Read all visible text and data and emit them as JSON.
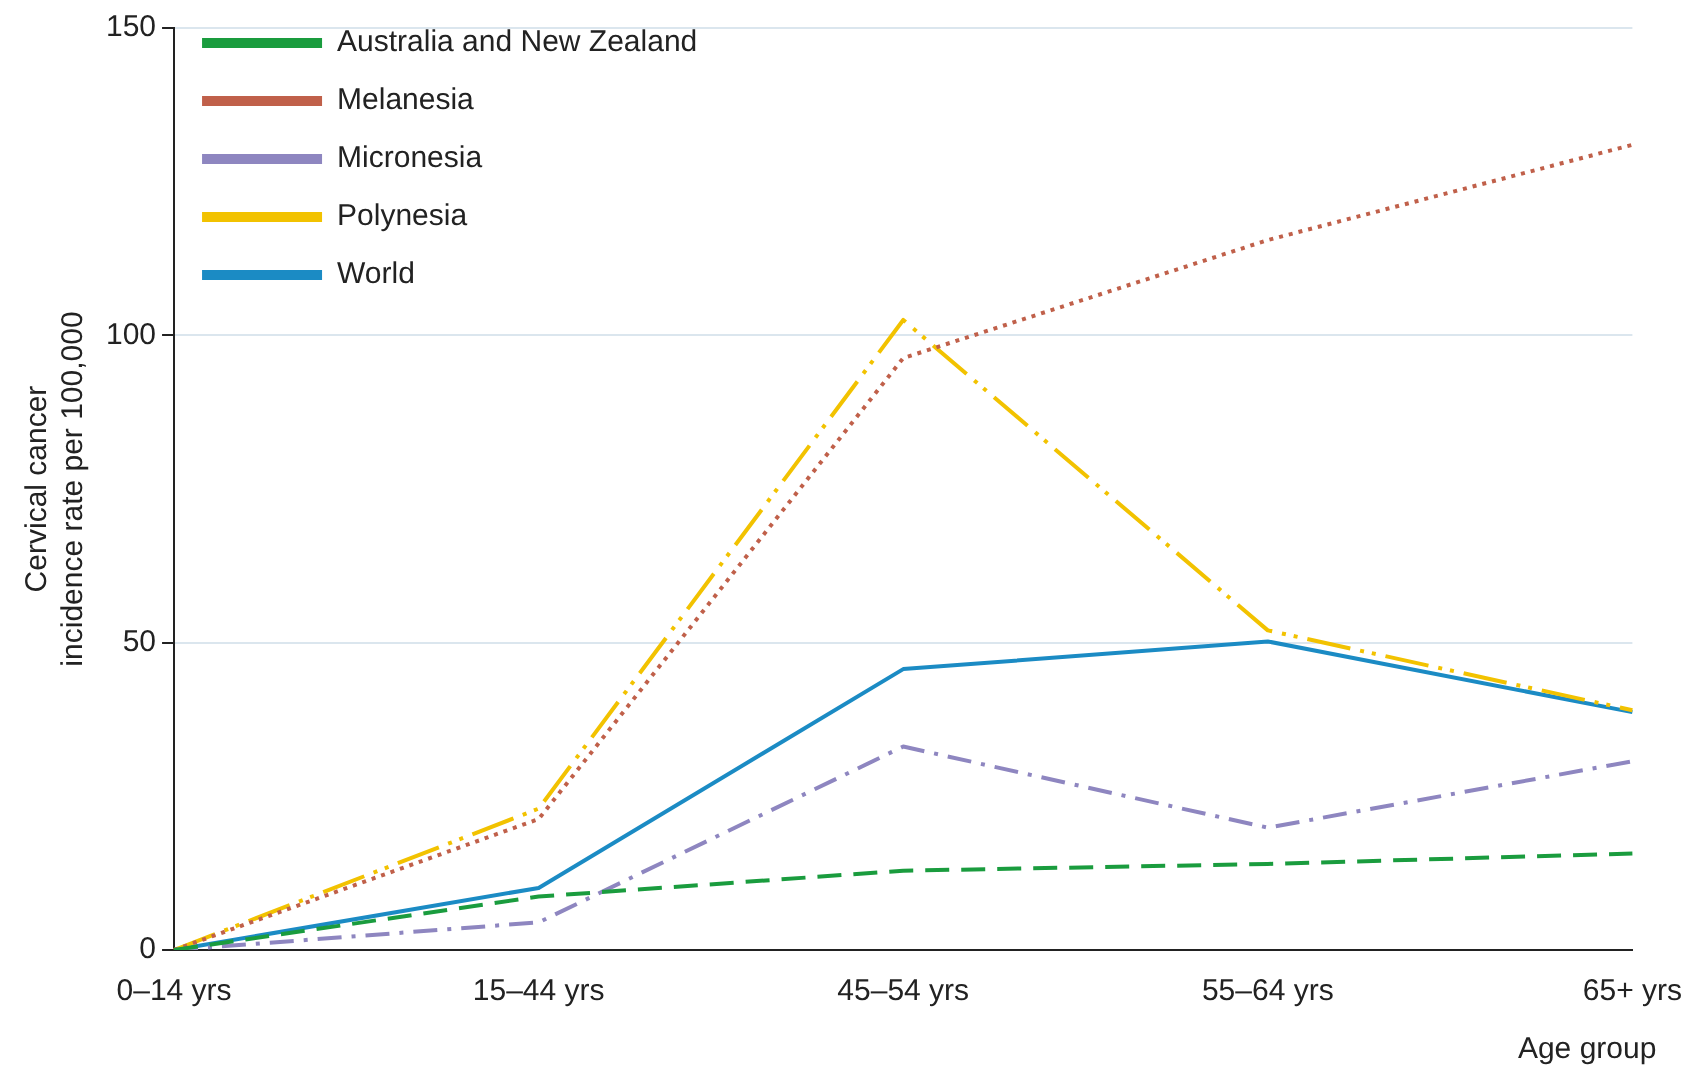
{
  "chart_data": {
    "type": "line",
    "xlabel": "Age group",
    "ylabel": "Cervical cancer\nincidence rate per 100,000",
    "categories": [
      "0–14 yrs",
      "15–44 yrs",
      "45–54 yrs",
      "55–64 yrs",
      "65+ yrs"
    ],
    "series": [
      {
        "name": "Australia and New Zealand",
        "color": "#1a9c3e",
        "line_style": "dashed",
        "values": [
          0,
          8.7,
          12.9,
          14,
          15.7
        ]
      },
      {
        "name": "Melanesia",
        "color": "#c0604a",
        "line_style": "dotted",
        "values": [
          0,
          21.3,
          96.3,
          115.5,
          131
        ]
      },
      {
        "name": "Micronesia",
        "color": "#8e86c0",
        "line_style": "dashdot",
        "values": [
          0,
          4.5,
          33.1,
          19.9,
          30.7
        ]
      },
      {
        "name": "Polynesia",
        "color": "#f2c200",
        "line_style": "longdashdotdot",
        "values": [
          0,
          23,
          102.5,
          52,
          39
        ]
      },
      {
        "name": "World",
        "color": "#1b8bc4",
        "line_style": "solid",
        "values": [
          0,
          10.1,
          45.7,
          50.2,
          38.7
        ]
      }
    ],
    "ylim": [
      0,
      150
    ],
    "yticks": [
      0,
      50,
      100,
      150
    ],
    "grid": "y",
    "legend": "top left",
    "marker": "none"
  }
}
